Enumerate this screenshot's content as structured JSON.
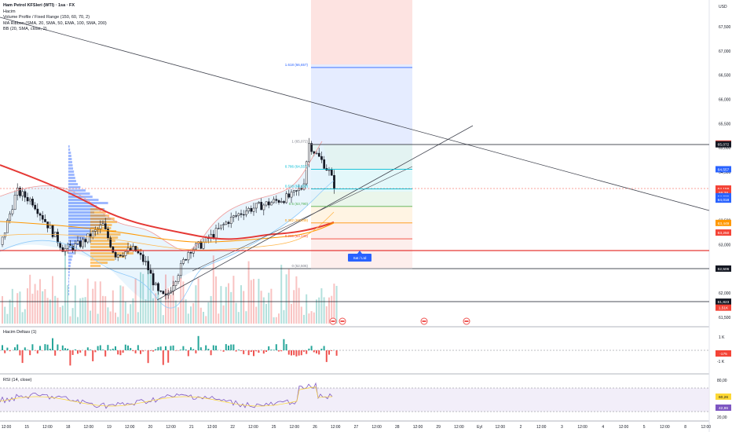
{
  "legend": {
    "symbol_title": "Ham Petrol KFSleri (WTI) · 1sa · FX",
    "chart_label": "Hacim",
    "indicators": [
      "Volume Profile / Fixed Range (150, 60, 70, 2)",
      "MA Ribbon (SMA, 20, SMA, 50, EMA, 100, SMA, 200)",
      "BB (20, SMA, close, 2)"
    ]
  },
  "colors": {
    "up": "#26a69a",
    "down": "#ef5350",
    "ma_red": "#e53935",
    "ma_orange": "#ff9800",
    "bb_fill": "#e3f2fd",
    "bb_line": "#90caf9",
    "bb_upper": "#ef9a9a",
    "profile_blue": "#2962ff",
    "profile_orange": "#ff9800",
    "fib_blue": "#2962ff",
    "fib_teal": "#00bcd4",
    "fib_green": "#4caf50",
    "fib_orange": "#ff9800",
    "fib_red": "#f44336",
    "fib_gray": "#787b86",
    "rsi_line": "#7e57c2",
    "rsi_ma": "#fdd835",
    "rsi_band": "#ede7f6"
  },
  "price_axis": {
    "currency": "USD",
    "ticks": [
      "67,500",
      "67,000",
      "66,500",
      "66,000",
      "65,500",
      "65,000",
      "64,500",
      "64,000",
      "63,500",
      "63,000",
      "62,500",
      "62,000",
      "61,500"
    ],
    "badges": [
      {
        "text": "65,087",
        "color": "#f44336",
        "value": 65.087
      },
      {
        "text": "65,072",
        "color": "#131722",
        "value": 65.072
      },
      {
        "text": "64,557",
        "color": "#2962ff",
        "value": 64.557
      },
      {
        "text": "64,159",
        "color": "#f44336",
        "value": 64.159
      },
      {
        "text": "59:38",
        "color": "#f44336",
        "value": 64.08
      },
      {
        "text": "64,036",
        "color": "#2962ff",
        "value": 64.0
      },
      {
        "text": "64,018",
        "color": "#2962ff",
        "value": 63.93
      },
      {
        "text": "63,449",
        "color": "#ff9800",
        "value": 63.449
      },
      {
        "text": "63,250",
        "color": "#f44336",
        "value": 63.25
      },
      {
        "text": "62,506",
        "color": "#131722",
        "value": 62.506
      },
      {
        "text": "61,823",
        "color": "#131722",
        "value": 61.823
      },
      {
        "text": "1,51K",
        "color": "#f44336",
        "value": 61.7
      }
    ]
  },
  "time_axis": {
    "ticks": [
      "12:00",
      "15",
      "12:00",
      "18",
      "12:00",
      "19",
      "12:00",
      "20",
      "12:00",
      "21",
      "12:00",
      "22",
      "12:00",
      "25",
      "12:00",
      "26",
      "12:00",
      "27",
      "12:00",
      "28",
      "12:00",
      "29",
      "12:00",
      "Eyl",
      "12:00",
      "2",
      "12:00",
      "3",
      "12:00",
      "4",
      "12:00",
      "5",
      "12:00",
      "8",
      "12:00"
    ]
  },
  "fib": {
    "levels": [
      {
        "label": "1.618 (66,657)",
        "value": 66.657,
        "color": "#2962ff"
      },
      {
        "label": "1 (65,072)",
        "value": 65.072,
        "color": "#787b86"
      },
      {
        "label": "0.786 (64,557)",
        "value": 64.557,
        "color": "#00bcd4"
      },
      {
        "label": "0.618 (64,150)",
        "value": 64.15,
        "color": "#00bcd4"
      },
      {
        "label": "0.5 (63,790)",
        "value": 63.79,
        "color": "#4caf50"
      },
      {
        "label": "0.382 (63,449)",
        "value": 63.449,
        "color": "#ff9800"
      },
      {
        "label": "0.236 (63,120)",
        "value": 63.12,
        "color": "#f44336"
      },
      {
        "label": "0 (62,506)",
        "value": 62.506,
        "color": "#787b86"
      }
    ]
  },
  "annotation": {
    "box_label": "Sat / Ltd"
  },
  "delta_pane": {
    "title": "Hacim Deltası (1)",
    "ticks": [
      "1 K",
      "-1 K"
    ],
    "badge": "-175"
  },
  "rsi_pane": {
    "title": "RSI (14, close)",
    "ticks": [
      "80,00",
      "60,26",
      "42,86",
      "20,00"
    ]
  }
}
